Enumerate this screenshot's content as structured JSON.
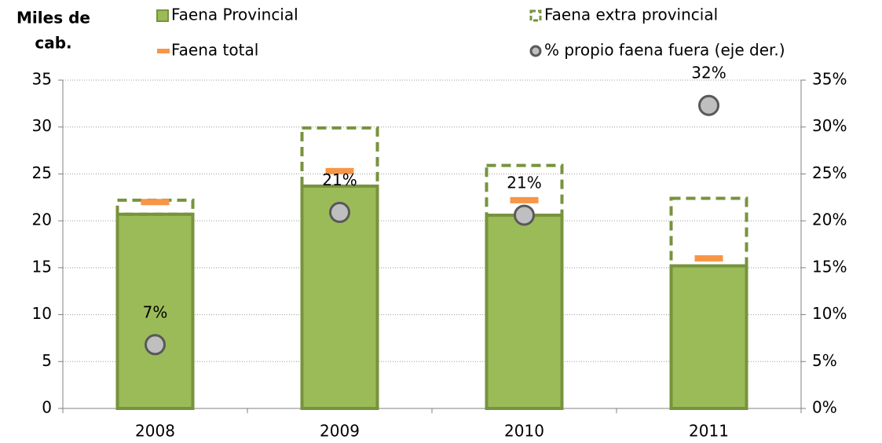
{
  "chart_data": {
    "type": "bar",
    "y_label": [
      "Miles de",
      "cab."
    ],
    "categories": [
      "2008",
      "2009",
      "2010",
      "2011"
    ],
    "series": [
      {
        "name": "Faena Provincial",
        "kind": "bar",
        "color": "#9bbb59",
        "stroke": "#77933c",
        "values": [
          20.7,
          23.7,
          20.6,
          15.2
        ]
      },
      {
        "name": "Faena extra provincial",
        "kind": "stacked-outline",
        "color": "#77933c",
        "values": [
          1.5,
          6.2,
          5.3,
          7.2
        ]
      },
      {
        "name": "Faena total",
        "kind": "dash",
        "color": "#f79646",
        "values": [
          22.0,
          25.3,
          22.2,
          16.0
        ]
      },
      {
        "name": "% propio faena fuera (eje der.)",
        "kind": "circle",
        "axis": "y2",
        "color": "#bfbfbf",
        "stroke": "#595959",
        "values": [
          6.8,
          20.9,
          20.6,
          32.3
        ],
        "value_labels": [
          "7%",
          "21%",
          "21%",
          "32%"
        ]
      }
    ],
    "ylim": [
      0,
      35
    ],
    "yticks": [
      0,
      5,
      10,
      15,
      20,
      25,
      30,
      35
    ],
    "y2lim": [
      0,
      35
    ],
    "y2ticks": [
      {
        "value": 0,
        "label": "0%"
      },
      {
        "value": 5,
        "label": "5%"
      },
      {
        "value": 10,
        "label": "10%"
      },
      {
        "value": 15,
        "label": "15%"
      },
      {
        "value": 20,
        "label": "20%"
      },
      {
        "value": 25,
        "label": "25%"
      },
      {
        "value": 30,
        "label": "30%"
      },
      {
        "value": 35,
        "label": "35%"
      }
    ],
    "grid": true
  }
}
